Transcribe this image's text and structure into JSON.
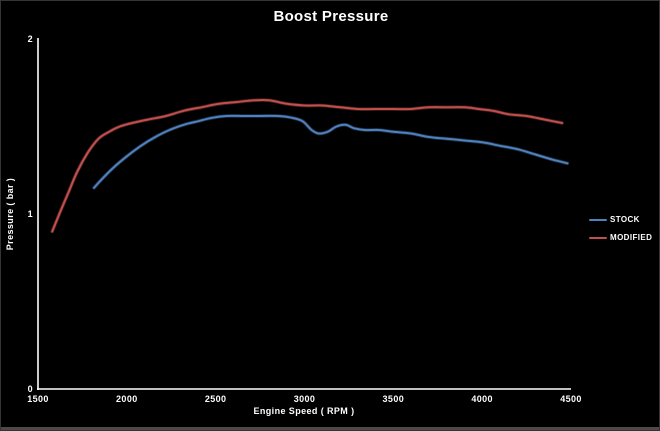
{
  "chart_data": {
    "type": "line",
    "title": "Boost Pressure",
    "xlabel": "Engine Speed ( RPM )",
    "ylabel": "Pressure ( bar )",
    "xlim": [
      1500,
      4500
    ],
    "ylim": [
      0,
      2
    ],
    "x_ticks": [
      "1500",
      "2000",
      "2500",
      "3000",
      "3500",
      "4000",
      "4500"
    ],
    "y_ticks": [
      "0",
      "1",
      "2"
    ],
    "grid": false,
    "legend_position": "right",
    "background_color": "#000000",
    "axis_color": "#ffffff",
    "text_color": "#ffffff",
    "series": [
      {
        "name": "STOCK",
        "color": "#4F81BD",
        "points": [
          [
            1815,
            1.15
          ],
          [
            1870,
            1.21
          ],
          [
            1930,
            1.27
          ],
          [
            2000,
            1.33
          ],
          [
            2080,
            1.39
          ],
          [
            2160,
            1.44
          ],
          [
            2240,
            1.48
          ],
          [
            2320,
            1.51
          ],
          [
            2400,
            1.53
          ],
          [
            2480,
            1.55
          ],
          [
            2560,
            1.56
          ],
          [
            2650,
            1.56
          ],
          [
            2750,
            1.56
          ],
          [
            2850,
            1.56
          ],
          [
            2930,
            1.55
          ],
          [
            2990,
            1.53
          ],
          [
            3040,
            1.48
          ],
          [
            3080,
            1.46
          ],
          [
            3130,
            1.47
          ],
          [
            3180,
            1.5
          ],
          [
            3230,
            1.51
          ],
          [
            3280,
            1.49
          ],
          [
            3340,
            1.48
          ],
          [
            3420,
            1.48
          ],
          [
            3500,
            1.47
          ],
          [
            3600,
            1.46
          ],
          [
            3700,
            1.44
          ],
          [
            3800,
            1.43
          ],
          [
            3900,
            1.42
          ],
          [
            4000,
            1.41
          ],
          [
            4100,
            1.39
          ],
          [
            4200,
            1.37
          ],
          [
            4300,
            1.34
          ],
          [
            4400,
            1.31
          ],
          [
            4480,
            1.29
          ]
        ]
      },
      {
        "name": "MODIFIED",
        "color": "#C0504D",
        "points": [
          [
            1580,
            0.9
          ],
          [
            1620,
            1.0
          ],
          [
            1670,
            1.12
          ],
          [
            1720,
            1.24
          ],
          [
            1780,
            1.35
          ],
          [
            1840,
            1.43
          ],
          [
            1900,
            1.47
          ],
          [
            1960,
            1.5
          ],
          [
            2030,
            1.52
          ],
          [
            2120,
            1.54
          ],
          [
            2220,
            1.56
          ],
          [
            2320,
            1.59
          ],
          [
            2420,
            1.61
          ],
          [
            2520,
            1.63
          ],
          [
            2620,
            1.64
          ],
          [
            2720,
            1.65
          ],
          [
            2800,
            1.65
          ],
          [
            2900,
            1.63
          ],
          [
            3000,
            1.62
          ],
          [
            3100,
            1.62
          ],
          [
            3200,
            1.61
          ],
          [
            3300,
            1.6
          ],
          [
            3400,
            1.6
          ],
          [
            3500,
            1.6
          ],
          [
            3600,
            1.6
          ],
          [
            3700,
            1.61
          ],
          [
            3800,
            1.61
          ],
          [
            3900,
            1.61
          ],
          [
            3980,
            1.6
          ],
          [
            4060,
            1.59
          ],
          [
            4150,
            1.57
          ],
          [
            4250,
            1.56
          ],
          [
            4350,
            1.54
          ],
          [
            4450,
            1.52
          ]
        ]
      }
    ]
  }
}
